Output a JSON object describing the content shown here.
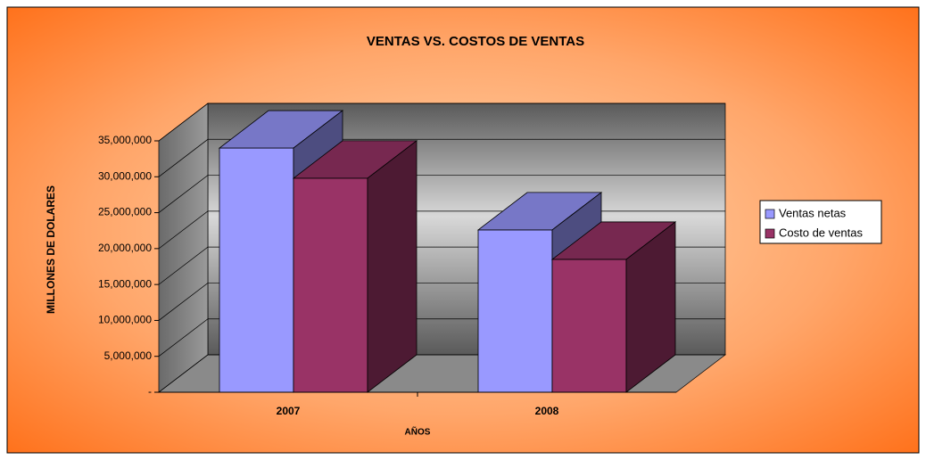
{
  "chart_data": {
    "type": "bar3d",
    "title": "VENTAS VS. COSTOS  DE VENTAS",
    "categories": [
      "2007",
      "2008"
    ],
    "series": [
      {
        "name": "Ventas netas",
        "color": "#9999ff",
        "values": [
          34000000,
          22600000
        ]
      },
      {
        "name": "Costo de ventas",
        "color": "#993366",
        "values": [
          29800000,
          18500000
        ]
      }
    ],
    "x_label": "AÑOS",
    "y_label": "MILLONES DE DOLARES",
    "ylim": [
      0,
      35000000
    ],
    "yticks": [
      {
        "value": 0,
        "label": "-"
      },
      {
        "value": 5000000,
        "label": "5,000,000"
      },
      {
        "value": 10000000,
        "label": "10,000,000"
      },
      {
        "value": 15000000,
        "label": "15,000,000"
      },
      {
        "value": 20000000,
        "label": "20,000,000"
      },
      {
        "value": 25000000,
        "label": "25,000,000"
      },
      {
        "value": 30000000,
        "label": "30,000,000"
      },
      {
        "value": 35000000,
        "label": "35,000,000"
      }
    ],
    "grid": true,
    "legend": "right"
  }
}
